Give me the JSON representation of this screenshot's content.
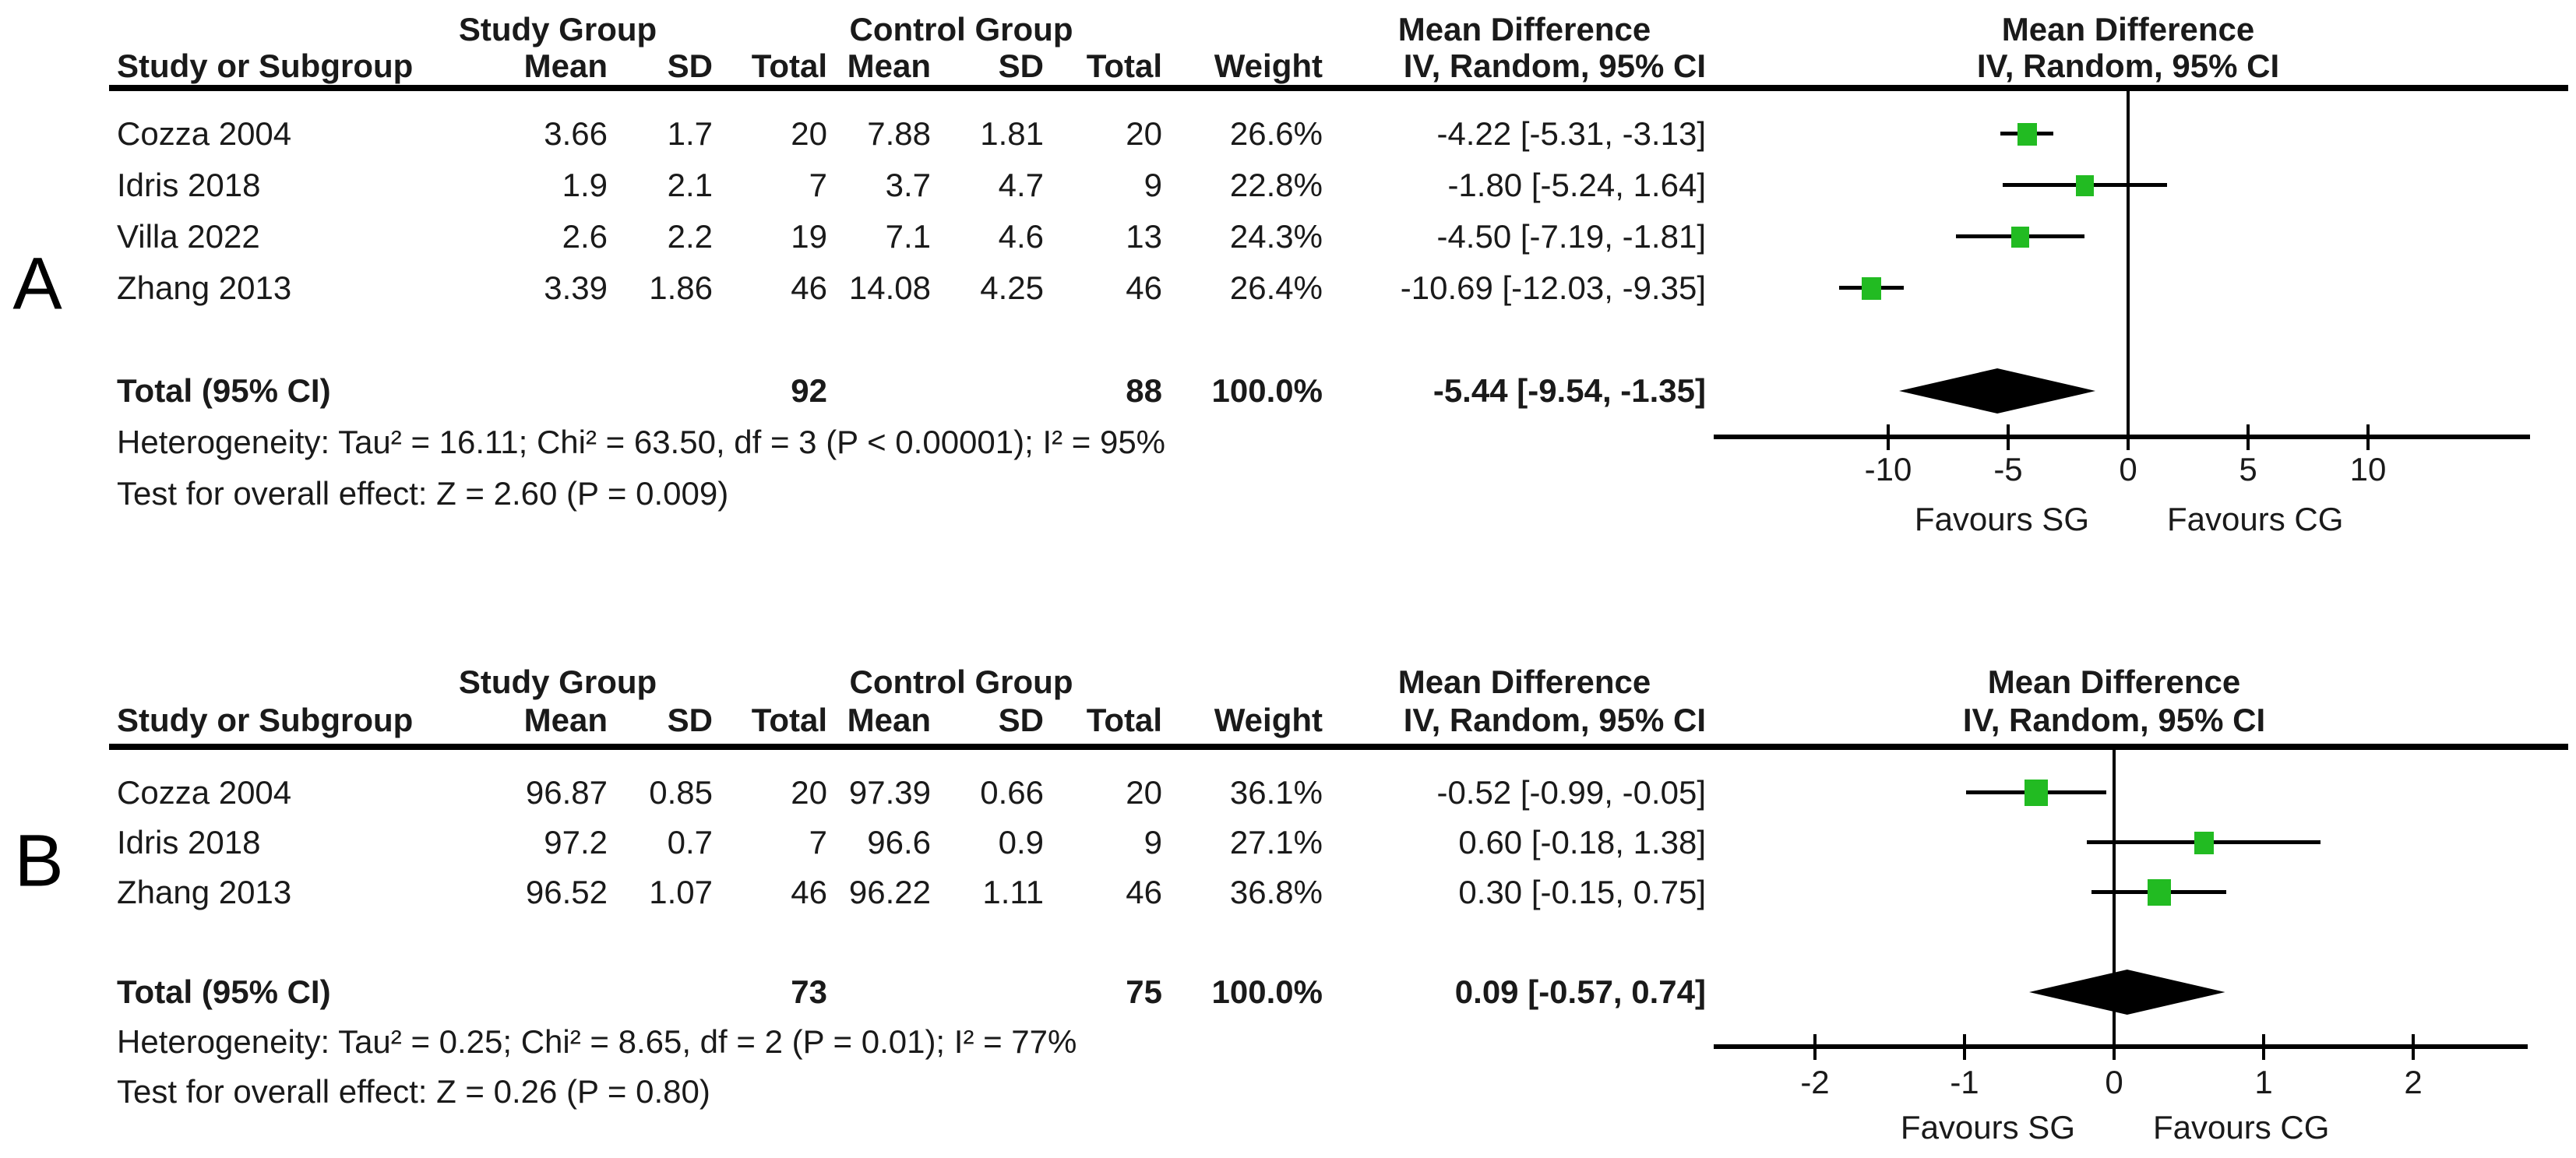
{
  "page": {
    "background": "#ffffff"
  },
  "colors": {
    "square_green": "#22bb22",
    "diamond_black": "#000000",
    "line_black": "#000000",
    "text": "#1a1a1a"
  },
  "chart_data": [
    {
      "type": "forest",
      "panel_label": "A",
      "group_headers": {
        "study_group": "Study Group",
        "control_group": "Control Group",
        "mean_difference": "Mean Difference",
        "plot_mean_difference": "Mean Difference"
      },
      "column_headers": {
        "study": "Study or Subgroup",
        "sg_mean": "Mean",
        "sg_sd": "SD",
        "sg_total": "Total",
        "cg_mean": "Mean",
        "cg_sd": "SD",
        "cg_total": "Total",
        "weight": "Weight",
        "ci": "IV, Random, 95% CI",
        "plot_ci": "IV, Random, 95% CI"
      },
      "studies": [
        {
          "name": "Cozza 2004",
          "sg_mean": "3.66",
          "sg_sd": "1.7",
          "sg_total": "20",
          "cg_mean": "7.88",
          "cg_sd": "1.81",
          "cg_total": "20",
          "weight": "26.6%",
          "weight_pct": 26.6,
          "ci_label": "-4.22 [-5.31, -3.13]",
          "md": -4.22,
          "ci_low": -5.31,
          "ci_high": -3.13
        },
        {
          "name": "Idris 2018",
          "sg_mean": "1.9",
          "sg_sd": "2.1",
          "sg_total": "7",
          "cg_mean": "3.7",
          "cg_sd": "4.7",
          "cg_total": "9",
          "weight": "22.8%",
          "weight_pct": 22.8,
          "ci_label": "-1.80 [-5.24, 1.64]",
          "md": -1.8,
          "ci_low": -5.24,
          "ci_high": 1.64
        },
        {
          "name": "Villa 2022",
          "sg_mean": "2.6",
          "sg_sd": "2.2",
          "sg_total": "19",
          "cg_mean": "7.1",
          "cg_sd": "4.6",
          "cg_total": "13",
          "weight": "24.3%",
          "weight_pct": 24.3,
          "ci_label": "-4.50 [-7.19, -1.81]",
          "md": -4.5,
          "ci_low": -7.19,
          "ci_high": -1.81
        },
        {
          "name": "Zhang 2013",
          "sg_mean": "3.39",
          "sg_sd": "1.86",
          "sg_total": "46",
          "cg_mean": "14.08",
          "cg_sd": "4.25",
          "cg_total": "46",
          "weight": "26.4%",
          "weight_pct": 26.4,
          "ci_label": "-10.69 [-12.03, -9.35]",
          "md": -10.69,
          "ci_low": -12.03,
          "ci_high": -9.35
        }
      ],
      "total": {
        "label": "Total (95% CI)",
        "sg_total": "92",
        "cg_total": "88",
        "weight": "100.0%",
        "ci_label": "-5.44 [-9.54, -1.35]",
        "md": -5.44,
        "ci_low": -9.54,
        "ci_high": -1.35
      },
      "heterogeneity": "Heterogeneity: Tau² = 16.11; Chi² = 63.50, df = 3 (P < 0.00001); I² = 95%",
      "overall_effect": "Test for overall effect: Z = 2.60 (P = 0.009)",
      "axis": {
        "ticks": [
          -10,
          -5,
          0,
          5,
          10
        ],
        "xlim": [
          -17.3,
          16.8
        ],
        "favours_left": "Favours SG",
        "favours_right": "Favours CG"
      }
    },
    {
      "type": "forest",
      "panel_label": "B",
      "group_headers": {
        "study_group": "Study Group",
        "control_group": "Control Group",
        "mean_difference": "Mean Difference",
        "plot_mean_difference": "Mean Difference"
      },
      "column_headers": {
        "study": "Study or Subgroup",
        "sg_mean": "Mean",
        "sg_sd": "SD",
        "sg_total": "Total",
        "cg_mean": "Mean",
        "cg_sd": "SD",
        "cg_total": "Total",
        "weight": "Weight",
        "ci": "IV, Random, 95% CI",
        "plot_ci": "IV, Random, 95% CI"
      },
      "studies": [
        {
          "name": "Cozza 2004",
          "sg_mean": "96.87",
          "sg_sd": "0.85",
          "sg_total": "20",
          "cg_mean": "97.39",
          "cg_sd": "0.66",
          "cg_total": "20",
          "weight": "36.1%",
          "weight_pct": 36.1,
          "ci_label": "-0.52 [-0.99, -0.05]",
          "md": -0.52,
          "ci_low": -0.99,
          "ci_high": -0.05
        },
        {
          "name": "Idris 2018",
          "sg_mean": "97.2",
          "sg_sd": "0.7",
          "sg_total": "7",
          "cg_mean": "96.6",
          "cg_sd": "0.9",
          "cg_total": "9",
          "weight": "27.1%",
          "weight_pct": 27.1,
          "ci_label": "0.60 [-0.18, 1.38]",
          "md": 0.6,
          "ci_low": -0.18,
          "ci_high": 1.38
        },
        {
          "name": "Zhang 2013",
          "sg_mean": "96.52",
          "sg_sd": "1.07",
          "sg_total": "46",
          "cg_mean": "96.22",
          "cg_sd": "1.11",
          "cg_total": "46",
          "weight": "36.8%",
          "weight_pct": 36.8,
          "ci_label": "0.30 [-0.15, 0.75]",
          "md": 0.3,
          "ci_low": -0.15,
          "ci_high": 0.75
        }
      ],
      "total": {
        "label": "Total (95% CI)",
        "sg_total": "73",
        "cg_total": "75",
        "weight": "100.0%",
        "ci_label": "0.09 [-0.57, 0.74]",
        "md": 0.09,
        "ci_low": -0.57,
        "ci_high": 0.74
      },
      "heterogeneity": "Heterogeneity: Tau² = 0.25; Chi² = 8.65, df = 2 (P = 0.01); I² = 77%",
      "overall_effect": "Test for overall effect: Z = 0.26 (P = 0.80)",
      "axis": {
        "ticks": [
          -2,
          -1,
          0,
          1,
          2
        ],
        "xlim": [
          -2.68,
          2.76
        ],
        "favours_left": "Favours SG",
        "favours_right": "Favours CG"
      }
    }
  ]
}
